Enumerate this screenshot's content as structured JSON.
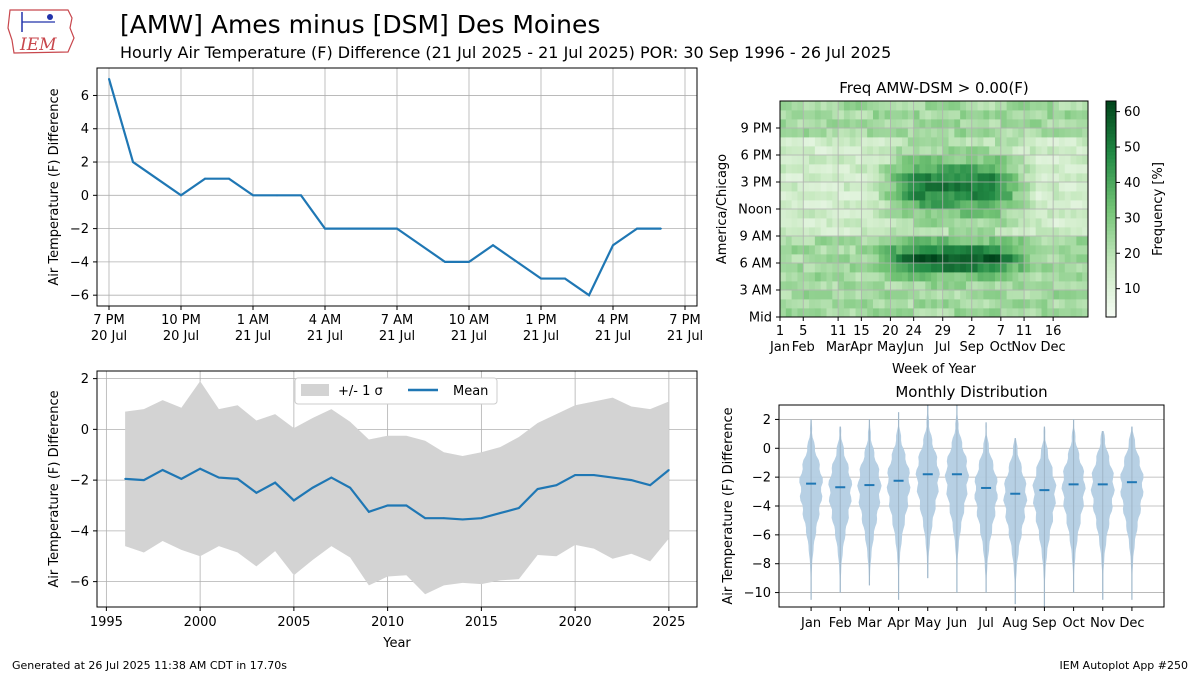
{
  "header": {
    "title": "[AMW] Ames minus [DSM] Des Moines",
    "subtitle": "Hourly Air Temperature (F) Difference (21 Jul 2025 - 21 Jul 2025) POR: 30 Sep 1996 - 26 Jul 2025",
    "logo_text": "IEM"
  },
  "footer": {
    "left": "Generated at 26 Jul 2025 11:38 AM CDT in 17.70s",
    "right": "IEM Autoplot App #250"
  },
  "colors": {
    "line": "#1f77b4",
    "band": "#d3d3d3",
    "violin": "#b3cde3",
    "grid": "#b0b0b0"
  },
  "chart_data": [
    {
      "id": "hourly",
      "type": "line",
      "ylabel": "Air Temperature (F) Difference",
      "ylim": [
        -6.65,
        7.65
      ],
      "yticks": [
        -6,
        -4,
        -2,
        0,
        2,
        4,
        6
      ],
      "xlim": [
        -0.5,
        24.5
      ],
      "xticks": [
        {
          "x": 0,
          "l1": "7 PM",
          "l2": "20 Jul"
        },
        {
          "x": 3,
          "l1": "10 PM",
          "l2": "20 Jul"
        },
        {
          "x": 6,
          "l1": "1 AM",
          "l2": "21 Jul"
        },
        {
          "x": 9,
          "l1": "4 AM",
          "l2": "21 Jul"
        },
        {
          "x": 12,
          "l1": "7 AM",
          "l2": "21 Jul"
        },
        {
          "x": 15,
          "l1": "10 AM",
          "l2": "21 Jul"
        },
        {
          "x": 18,
          "l1": "1 PM",
          "l2": "21 Jul"
        },
        {
          "x": 21,
          "l1": "4 PM",
          "l2": "21 Jul"
        },
        {
          "x": 24,
          "l1": "7 PM",
          "l2": "21 Jul"
        }
      ],
      "values": [
        7,
        2,
        1,
        0,
        1,
        1,
        0,
        0,
        0,
        -2,
        -2,
        -2,
        -2,
        -3,
        -4,
        -4,
        -3,
        -4,
        -5,
        -5,
        -6,
        -3,
        -2,
        -2
      ]
    },
    {
      "id": "yearly",
      "type": "area",
      "xlabel": "Year",
      "ylabel": "Air Temperature (F) Difference",
      "xlim": [
        1994.5,
        2026.5
      ],
      "ylim": [
        -7.0,
        2.3
      ],
      "xticks": [
        1995,
        2000,
        2005,
        2010,
        2015,
        2020,
        2025
      ],
      "yticks": [
        -6,
        -4,
        -2,
        0,
        2
      ],
      "legend": [
        {
          "label": "+/- 1 σ"
        },
        {
          "label": "Mean"
        }
      ],
      "legend_position": "top-center",
      "years": [
        1996,
        1997,
        1998,
        1999,
        2000,
        2001,
        2002,
        2003,
        2004,
        2005,
        2006,
        2007,
        2008,
        2009,
        2010,
        2011,
        2012,
        2013,
        2014,
        2015,
        2016,
        2017,
        2018,
        2019,
        2020,
        2021,
        2022,
        2023,
        2024,
        2025
      ],
      "upper": [
        0.7,
        0.8,
        1.15,
        0.85,
        1.9,
        0.8,
        0.95,
        0.35,
        0.6,
        0.05,
        0.45,
        0.8,
        0.3,
        -0.4,
        -0.25,
        -0.25,
        -0.45,
        -0.9,
        -1.05,
        -0.9,
        -0.7,
        -0.3,
        0.25,
        0.6,
        0.95,
        1.1,
        1.25,
        0.9,
        0.8,
        1.1
      ],
      "mean": [
        -1.95,
        -2.0,
        -1.6,
        -1.95,
        -1.55,
        -1.9,
        -1.95,
        -2.5,
        -2.1,
        -2.8,
        -2.3,
        -1.9,
        -2.3,
        -3.25,
        -3.0,
        -3.0,
        -3.5,
        -3.5,
        -3.55,
        -3.5,
        -3.3,
        -3.1,
        -2.35,
        -2.2,
        -1.8,
        -1.8,
        -1.9,
        -2.0,
        -2.2,
        -1.6
      ],
      "lower": [
        -4.6,
        -4.85,
        -4.4,
        -4.75,
        -5.0,
        -4.6,
        -4.85,
        -5.4,
        -4.8,
        -5.75,
        -5.15,
        -4.6,
        -5.05,
        -6.15,
        -5.8,
        -5.75,
        -6.5,
        -6.15,
        -6.05,
        -6.1,
        -5.95,
        -5.9,
        -4.95,
        -5.0,
        -4.55,
        -4.7,
        -5.1,
        -4.9,
        -5.2,
        -4.3
      ]
    },
    {
      "id": "heatmap",
      "type": "heatmap",
      "title": "Freq AMW-DSM > 0.00(F)",
      "xlabel": "Week of Year",
      "ylabel": "America/Chicago",
      "colorbar_label": "Frequency [%]",
      "colorbar_ticks": [
        10,
        20,
        30,
        40,
        50,
        60
      ],
      "zlim": [
        2,
        63
      ],
      "xlim": [
        0,
        53
      ],
      "ylim": [
        0,
        24
      ],
      "xticks": [
        {
          "x": 0,
          "l1": "1",
          "l2": "Jan"
        },
        {
          "x": 4,
          "l1": "5",
          "l2": "Feb"
        },
        {
          "x": 10,
          "l1": "11",
          "l2": "Mar"
        },
        {
          "x": 14,
          "l1": "15",
          "l2": "Apr"
        },
        {
          "x": 19,
          "l1": "20",
          "l2": "May"
        },
        {
          "x": 23,
          "l1": "24",
          "l2": "Jun"
        },
        {
          "x": 28,
          "l1": "29",
          "l2": "Jul"
        },
        {
          "x": 33,
          "l1": "2",
          "l2": "Sep"
        },
        {
          "x": 38,
          "l1": "7",
          "l2": "Oct"
        },
        {
          "x": 42,
          "l1": "11",
          "l2": "Nov"
        },
        {
          "x": 47,
          "l1": "16",
          "l2": "Dec"
        }
      ],
      "yticks": [
        {
          "y": 0,
          "l": "Mid"
        },
        {
          "y": 3,
          "l": "3 AM"
        },
        {
          "y": 6,
          "l": "6 AM"
        },
        {
          "y": 9,
          "l": "9 AM"
        },
        {
          "y": 12,
          "l": "Noon"
        },
        {
          "y": 15,
          "l": "3 PM"
        },
        {
          "y": 18,
          "l": "6 PM"
        },
        {
          "y": 21,
          "l": "9 PM"
        }
      ],
      "model": {
        "base_night": 24,
        "base_day": 14,
        "night_amp": 12,
        "morning_center_hour": 6,
        "morning_width_hours": 1.6,
        "morning_peak": 36,
        "afternoon_center_hour": 14,
        "afternoon_width_hours": 3.0,
        "afternoon_peak": 32,
        "summer_start_week": 19,
        "summer_end_week": 40
      }
    },
    {
      "id": "monthly",
      "type": "violin",
      "title": "Monthly Distribution",
      "ylabel": "Air Temperature (F) Difference",
      "ylim": [
        -11.0,
        3.0
      ],
      "yticks": [
        -10,
        -8,
        -6,
        -4,
        -2,
        0,
        2
      ],
      "categories": [
        "Jan",
        "Feb",
        "Mar",
        "Apr",
        "May",
        "Jun",
        "Jul",
        "Aug",
        "Sep",
        "Oct",
        "Nov",
        "Dec"
      ],
      "means": [
        -2.45,
        -2.7,
        -2.55,
        -2.25,
        -1.8,
        -1.8,
        -2.75,
        -3.15,
        -2.9,
        -2.5,
        -2.5,
        -2.35
      ],
      "max": [
        2.0,
        1.5,
        2.0,
        2.5,
        3.0,
        3.0,
        1.8,
        0.7,
        1.5,
        2.0,
        1.2,
        1.5
      ],
      "min": [
        -10.5,
        -10.0,
        -9.5,
        -10.5,
        -9.0,
        -10.0,
        -10.0,
        -10.8,
        -11.0,
        -10.0,
        -10.5,
        -10.5
      ]
    }
  ]
}
